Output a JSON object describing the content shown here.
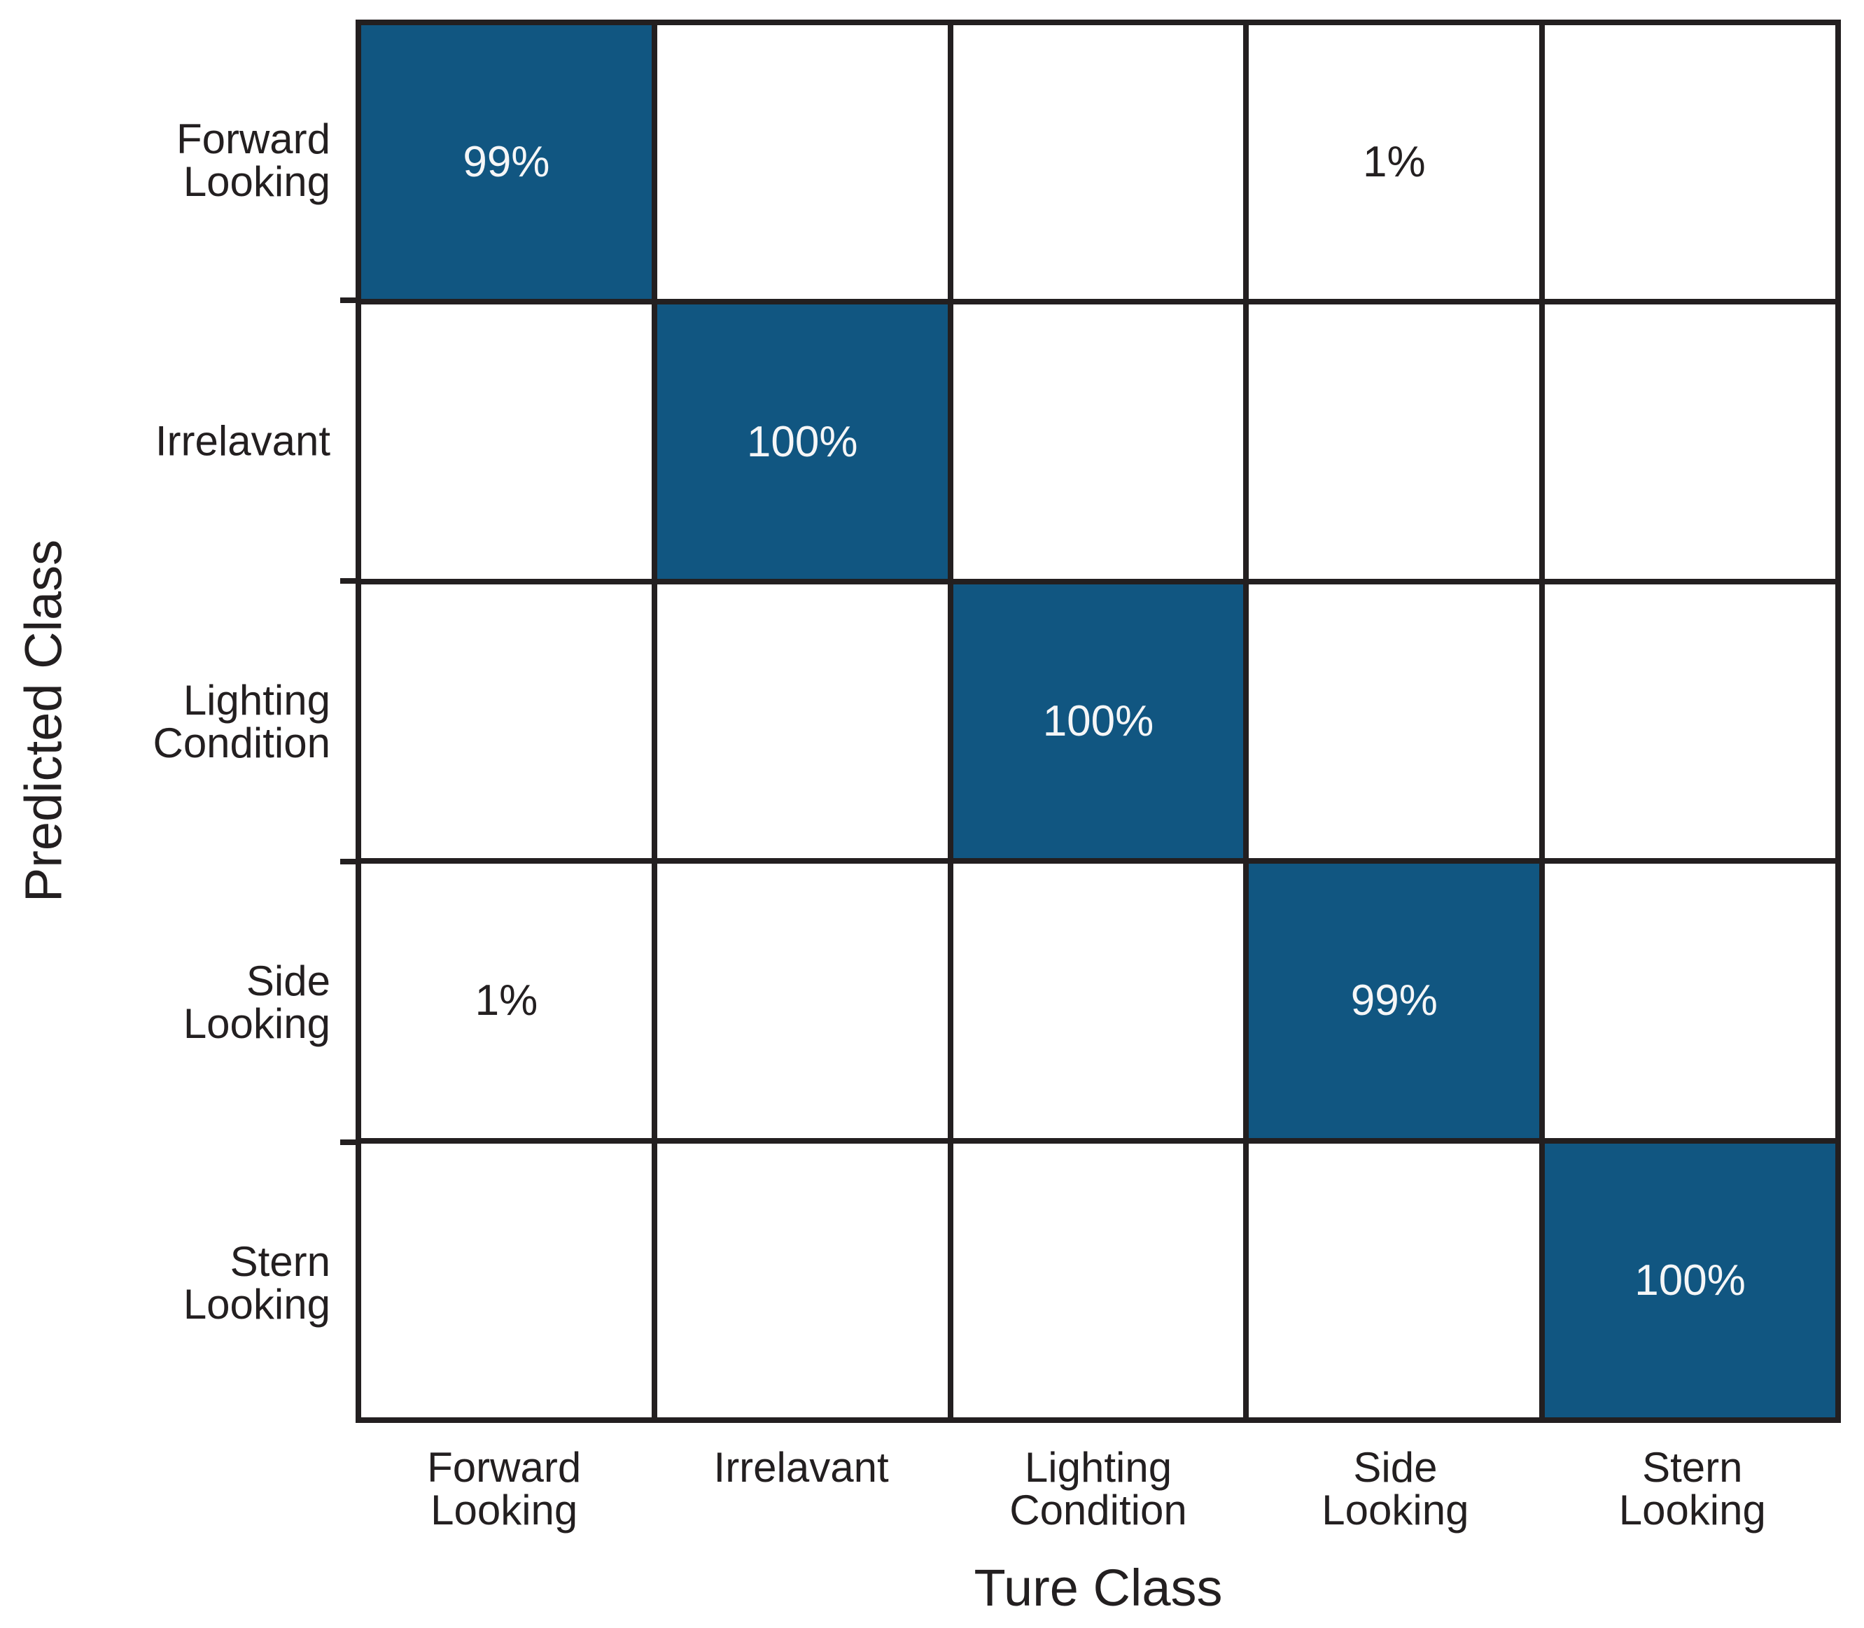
{
  "chart_data": {
    "type": "heatmap",
    "subtype": "confusion-matrix",
    "title": "",
    "xlabel": "Ture Class",
    "ylabel": "Predicted Class",
    "classes": [
      "Forward Looking",
      "Irrelavant",
      "Lighting Condition",
      "Side Looking",
      "Stern Looking"
    ],
    "x_tick_labels": [
      "Forward\nLooking",
      "Irrelavant",
      "Lighting\nCondition",
      "Side\nLooking",
      "Stern\nLooking"
    ],
    "y_tick_labels": [
      "Forward\nLooking",
      "Irrelavant",
      "Lighting\nCondition",
      "Side\nLooking",
      "Stern\nLooking"
    ],
    "matrix_percent": [
      [
        99,
        null,
        null,
        1,
        null
      ],
      [
        null,
        100,
        null,
        null,
        null
      ],
      [
        null,
        null,
        100,
        null,
        null
      ],
      [
        1,
        null,
        null,
        99,
        null
      ],
      [
        null,
        null,
        null,
        null,
        100
      ]
    ],
    "cell_labels": [
      [
        "99%",
        "",
        "",
        "1%",
        ""
      ],
      [
        "",
        "100%",
        "",
        "",
        ""
      ],
      [
        "",
        "",
        "100%",
        "",
        ""
      ],
      [
        "1%",
        "",
        "",
        "99%",
        ""
      ],
      [
        "",
        "",
        "",
        "",
        "100%"
      ]
    ],
    "colors": {
      "diagonal_fill": "#115681",
      "grid_line": "#231f20",
      "label_text": "#231f20",
      "value_text_on_fill": "#f5f6f7",
      "background": "#ffffff"
    },
    "grid": "on",
    "legend": "none"
  }
}
